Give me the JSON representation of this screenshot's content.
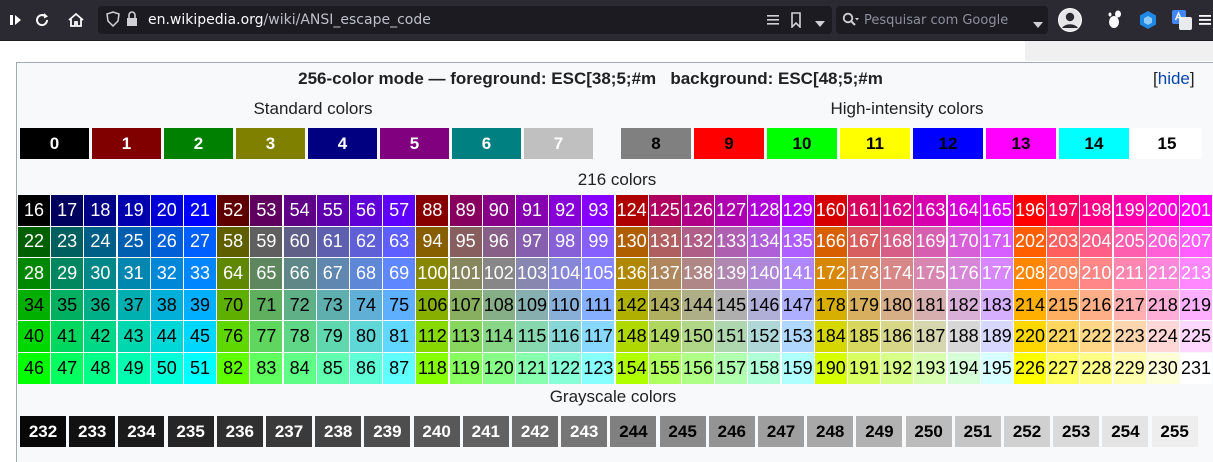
{
  "browser": {
    "url_host": "en.wikipedia.org",
    "url_path": "/wiki/ANSI_escape_code",
    "search_placeholder": "Pesquisar com Google",
    "icons": [
      "sidebar-toggle-icon",
      "reload-icon",
      "home-icon",
      "shield-icon",
      "lock-icon",
      "reader-mode-icon",
      "bookmark-icon",
      "url-dropdown-icon",
      "search-icon",
      "search-dropdown-icon",
      "account-icon",
      "gnome-extension-icon",
      "cube-extension-icon",
      "translate-extension-icon",
      "menu-icon"
    ]
  },
  "table": {
    "title": "256-color mode — foreground: ESC[38;5;#m   background: ESC[48;5;#m",
    "hide_bracket_open": "[",
    "hide_label": "hide",
    "hide_bracket_close": "]",
    "standard_label": "Standard colors",
    "high_label": "High-intensity colors",
    "cube_label": "216 colors",
    "gray_label": "Grayscale colors"
  },
  "standard_colors": [
    {
      "n": "0",
      "bg": "#000000",
      "fg": "#ffffff"
    },
    {
      "n": "1",
      "bg": "#800000",
      "fg": "#ffffff"
    },
    {
      "n": "2",
      "bg": "#008000",
      "fg": "#ffffff"
    },
    {
      "n": "3",
      "bg": "#808000",
      "fg": "#ffffff"
    },
    {
      "n": "4",
      "bg": "#000080",
      "fg": "#ffffff"
    },
    {
      "n": "5",
      "bg": "#800080",
      "fg": "#ffffff"
    },
    {
      "n": "6",
      "bg": "#008080",
      "fg": "#ffffff"
    },
    {
      "n": "7",
      "bg": "#c0c0c0",
      "fg": "#ffffff"
    }
  ],
  "high_intensity_colors": [
    {
      "n": "8",
      "bg": "#808080",
      "fg": "#000000"
    },
    {
      "n": "9",
      "bg": "#ff0000",
      "fg": "#000000"
    },
    {
      "n": "10",
      "bg": "#00ff00",
      "fg": "#000000"
    },
    {
      "n": "11",
      "bg": "#ffff00",
      "fg": "#000000"
    },
    {
      "n": "12",
      "bg": "#0000ff",
      "fg": "#000000"
    },
    {
      "n": "13",
      "bg": "#ff00ff",
      "fg": "#000000"
    },
    {
      "n": "14",
      "bg": "#00ffff",
      "fg": "#000000"
    },
    {
      "n": "15",
      "bg": "#ffffff",
      "fg": "#000000"
    }
  ],
  "cube_colors": {
    "first": 16,
    "last": 231,
    "levels": [
      "00",
      "5f",
      "87",
      "af",
      "d7",
      "ff"
    ]
  },
  "grayscale_colors": {
    "first": 232,
    "last": 255
  }
}
